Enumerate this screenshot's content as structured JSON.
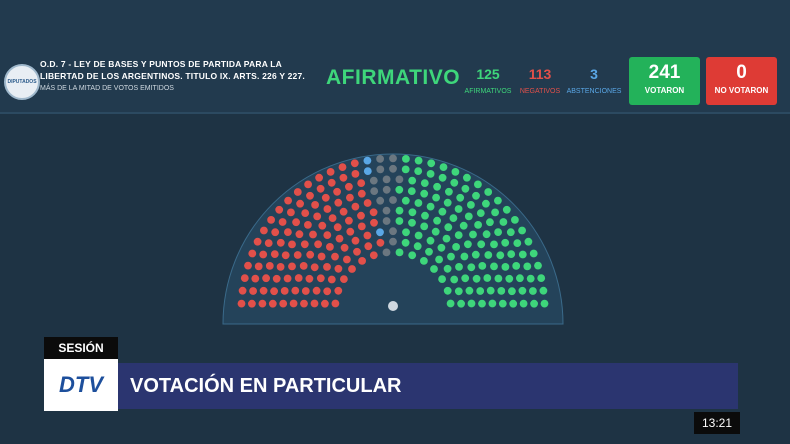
{
  "logo": {
    "text": "DIPUTADOS"
  },
  "motion": {
    "title": "O.D. 7 - LEY DE BASES Y PUNTOS DE PARTIDA PARA LA LIBERTAD DE LOS ARGENTINOS. TITULO IX. ARTS. 226 Y 227.",
    "majority": "MÁS DE LA MITAD DE VOTOS EMITIDOS"
  },
  "result": "AFIRMATIVO",
  "counts": {
    "afirmativos": {
      "value": "125",
      "label": "AFIRMATIVOS"
    },
    "negativos": {
      "value": "113",
      "label": "NEGATIVOS"
    },
    "abstenciones": {
      "value": "3",
      "label": "ABSTENCIONES"
    },
    "votaron": {
      "value": "241",
      "label": "VOTARON"
    },
    "no_votaron": {
      "value": "0",
      "label": "NO VOTARON"
    }
  },
  "colors": {
    "afirmativo": "#3ed67b",
    "negativo": "#e2504a",
    "abstencion": "#5aa7e6",
    "votaron_box": "#23b25a",
    "no_votaron_box": "#de3b35"
  },
  "seats": {
    "afirmativo": 125,
    "negativo": 113,
    "abstencion": 3,
    "ausente": 16
  },
  "lower_third": {
    "section": "SESIÓN",
    "channel": "DTV",
    "headline": "VOTACIÓN EN PARTICULAR"
  },
  "clock": "13:21"
}
